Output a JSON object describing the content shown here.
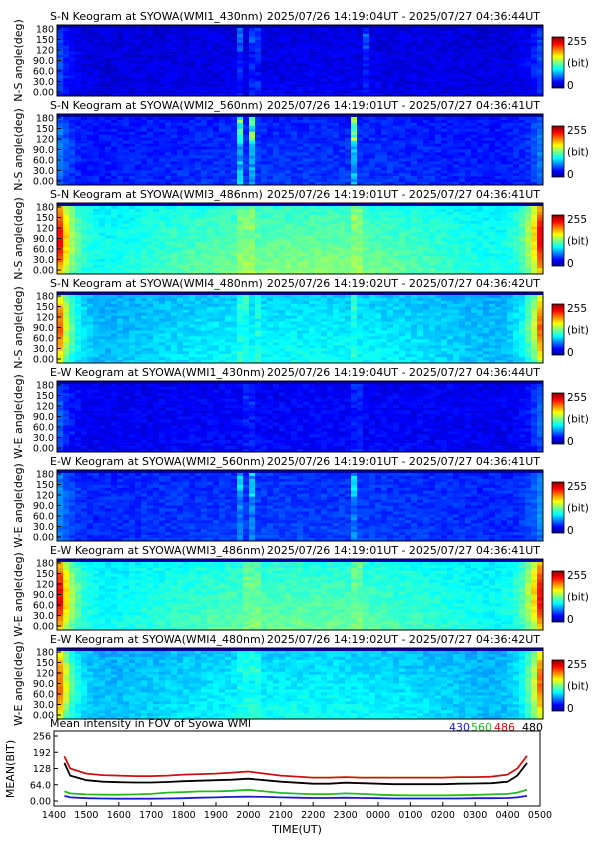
{
  "colors": {
    "axis": "#000000",
    "series_430": "#1a1acc",
    "series_560": "#22bb22",
    "series_486": "#cc1111",
    "series_480": "#000000",
    "background": "#ffffff"
  },
  "keograms": [
    {
      "title": "S-N Keogram at SYOWA(WMI1_430nm)",
      "time_range": "2025/07/26 14:19:04UT - 2025/07/27 04:36:44UT",
      "ylabel": "N-S angle(deg)",
      "base": 0.08,
      "edge": 0.12,
      "glow": 0.03,
      "streak": 0.08
    },
    {
      "title": "S-N Keogram at SYOWA(WMI2_560nm)",
      "time_range": "2025/07/26 14:19:01UT - 2025/07/27 04:36:41UT",
      "ylabel": "N-S angle(deg)",
      "base": 0.13,
      "edge": 0.12,
      "glow": 0.05,
      "streak": 0.25
    },
    {
      "title": "S-N Keogram at SYOWA(WMI3_486nm)",
      "time_range": "2025/07/26 14:19:01UT - 2025/07/27 04:36:41UT",
      "ylabel": "N-S angle(deg)",
      "base": 0.33,
      "edge": 0.55,
      "glow": 0.18,
      "streak": 0.06
    },
    {
      "title": "S-N Keogram at SYOWA(WMI4_480nm)",
      "time_range": "2025/07/26 14:19:02UT - 2025/07/27 04:36:42UT",
      "ylabel": "N-S angle(deg)",
      "base": 0.27,
      "edge": 0.5,
      "glow": 0.12,
      "streak": 0.06
    },
    {
      "title": "E-W Keogram at SYOWA(WMI1_430nm)",
      "time_range": "2025/07/26 14:19:04UT - 2025/07/27 04:36:44UT",
      "ylabel": "W-E angle(deg)",
      "base": 0.1,
      "edge": 0.12,
      "glow": 0.03,
      "streak": 0.04
    },
    {
      "title": "E-W Keogram at SYOWA(WMI2_560nm)",
      "time_range": "2025/07/26 14:19:01UT - 2025/07/27 04:36:41UT",
      "ylabel": "W-E angle(deg)",
      "base": 0.15,
      "edge": 0.12,
      "glow": 0.04,
      "streak": 0.12
    },
    {
      "title": "E-W Keogram at SYOWA(WMI3_486nm)",
      "time_range": "2025/07/26 14:19:01UT - 2025/07/27 04:36:41UT",
      "ylabel": "W-E angle(deg)",
      "base": 0.33,
      "edge": 0.55,
      "glow": 0.15,
      "streak": 0.05
    },
    {
      "title": "E-W Keogram at SYOWA(WMI4_480nm)",
      "time_range": "2025/07/26 14:19:02UT - 2025/07/27 04:36:42UT",
      "ylabel": "W-E angle(deg)",
      "base": 0.27,
      "edge": 0.5,
      "glow": 0.12,
      "streak": 0.05
    }
  ],
  "keogram_yticks": [
    "180",
    "150",
    "120",
    "90.0",
    "60.0",
    "30.0",
    "0.00"
  ],
  "colorbar": {
    "max_label": "255",
    "unit_label": "(bit)",
    "min_label": "0"
  },
  "chart_data": {
    "type": "line",
    "title": "Mean intensity in FOV of Syowa WMI",
    "xlabel": "TIME(UT)",
    "ylabel": "MEAN(BIT)",
    "x_tick_labels": [
      "1400",
      "1500",
      "1600",
      "1700",
      "1800",
      "1900",
      "2000",
      "2100",
      "2200",
      "2300",
      "0000",
      "0100",
      "0200",
      "0300",
      "0400",
      "0500"
    ],
    "y_tick_labels": [
      "256",
      "192",
      "128",
      "64.0",
      "0.00"
    ],
    "ylim": [
      0,
      256
    ],
    "x_hours": [
      14.32,
      14.5,
      15,
      15.5,
      16,
      16.5,
      17,
      17.5,
      18,
      18.5,
      19,
      19.5,
      20,
      20.5,
      21,
      21.5,
      22,
      22.5,
      23,
      23.5,
      24,
      24.5,
      25,
      25.5,
      26,
      26.5,
      27,
      27.5,
      28,
      28.3,
      28.6
    ],
    "series": [
      {
        "name": "430",
        "color": "#1a1acc",
        "values": [
          20,
          14,
          11,
          10,
          9,
          9,
          9,
          10,
          11,
          13,
          14,
          16,
          17,
          16,
          14,
          13,
          12,
          12,
          13,
          12,
          11,
          10,
          10,
          10,
          10,
          10,
          11,
          11,
          12,
          14,
          20
        ]
      },
      {
        "name": "560",
        "color": "#22bb22",
        "values": [
          38,
          30,
          26,
          25,
          25,
          26,
          28,
          33,
          35,
          38,
          38,
          40,
          44,
          38,
          32,
          29,
          27,
          27,
          30,
          28,
          25,
          23,
          22,
          22,
          22,
          23,
          24,
          26,
          28,
          33,
          44
        ]
      },
      {
        "name": "486",
        "color": "#cc1111",
        "values": [
          176,
          128,
          108,
          102,
          100,
          98,
          98,
          100,
          104,
          106,
          108,
          112,
          116,
          108,
          100,
          96,
          92,
          92,
          94,
          92,
          92,
          92,
          92,
          92,
          92,
          94,
          94,
          96,
          104,
          128,
          178
        ]
      },
      {
        "name": "480",
        "color": "#000000",
        "values": [
          150,
          100,
          82,
          76,
          74,
          73,
          73,
          75,
          78,
          80,
          82,
          84,
          88,
          82,
          76,
          72,
          68,
          68,
          72,
          70,
          68,
          66,
          66,
          66,
          66,
          68,
          69,
          70,
          76,
          100,
          150
        ]
      }
    ]
  }
}
